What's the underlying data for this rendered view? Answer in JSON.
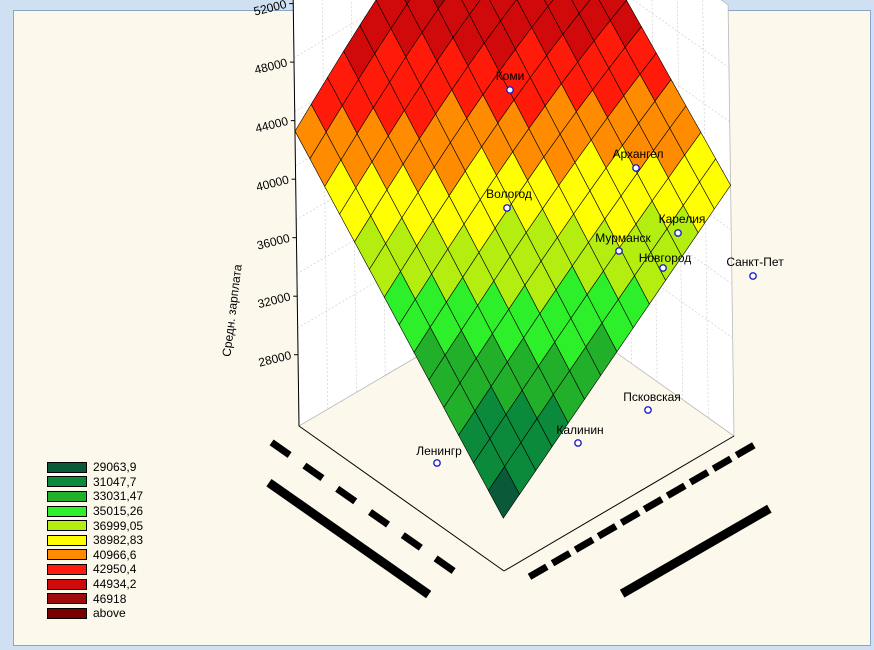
{
  "chart_data": {
    "type": "surface3d",
    "zlabel": "Средн. зарплата",
    "xlabel": "",
    "ylabel": "",
    "z_ticks": [
      52000,
      48000,
      44000,
      40000,
      36000,
      32000,
      28000
    ],
    "points": [
      {
        "name": "Коми"
      },
      {
        "name": "Архангел"
      },
      {
        "name": "Вологод"
      },
      {
        "name": "Карелия"
      },
      {
        "name": "Мурманск"
      },
      {
        "name": "Новгород"
      },
      {
        "name": "Санкт-Пет"
      },
      {
        "name": "Псковская"
      },
      {
        "name": "Калинин"
      },
      {
        "name": "Ленингр"
      }
    ],
    "legend": [
      {
        "label": "29063,9",
        "color": "#0a5a3a"
      },
      {
        "label": "31047,7",
        "color": "#0a8a3a"
      },
      {
        "label": "33031,47",
        "color": "#22b02a"
      },
      {
        "label": "35015,26",
        "color": "#2ef02a"
      },
      {
        "label": "36999,05",
        "color": "#b4ee10"
      },
      {
        "label": "38982,83",
        "color": "#ffff00"
      },
      {
        "label": "40966,6",
        "color": "#ff8c00"
      },
      {
        "label": "42950,4",
        "color": "#ff1a0a"
      },
      {
        "label": "44934,2",
        "color": "#d00a0a"
      },
      {
        "label": "46918",
        "color": "#9e0a0a"
      },
      {
        "label": "above",
        "color": "#7a0000"
      }
    ]
  }
}
